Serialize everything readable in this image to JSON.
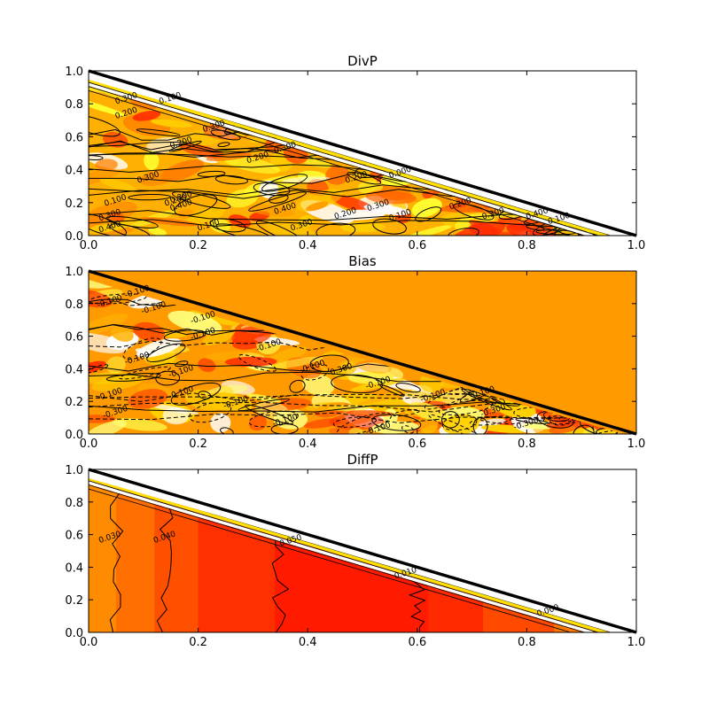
{
  "chart_data": [
    {
      "type": "contour",
      "title": "DivP",
      "xlim": [
        0.0,
        1.0
      ],
      "ylim": [
        0.0,
        1.0
      ],
      "xticks": [
        "0.0",
        "0.2",
        "0.4",
        "0.6",
        "0.8",
        "1.0"
      ],
      "yticks": [
        "0.0",
        "0.2",
        "0.4",
        "0.6",
        "0.8",
        "1.0"
      ],
      "boundary_line": [
        [
          0.0,
          1.0
        ],
        [
          1.0,
          0.0
        ]
      ],
      "background": "#ffffff",
      "contour_labels": [
        {
          "text": "0.300",
          "x": 0.07,
          "y": 0.82
        },
        {
          "text": "0.200",
          "x": 0.07,
          "y": 0.73
        },
        {
          "text": "0.100",
          "x": 0.15,
          "y": 0.82
        },
        {
          "text": "0.300",
          "x": 0.23,
          "y": 0.65
        },
        {
          "text": "0.200",
          "x": 0.17,
          "y": 0.55
        },
        {
          "text": "0.200",
          "x": 0.31,
          "y": 0.46
        },
        {
          "text": "0.300",
          "x": 0.36,
          "y": 0.52
        },
        {
          "text": "0.300",
          "x": 0.11,
          "y": 0.34
        },
        {
          "text": "0.100",
          "x": 0.05,
          "y": 0.2
        },
        {
          "text": "0.200",
          "x": 0.16,
          "y": 0.2
        },
        {
          "text": "0.400",
          "x": 0.17,
          "y": 0.17
        },
        {
          "text": "0.300",
          "x": 0.17,
          "y": 0.22
        },
        {
          "text": "0.300",
          "x": 0.04,
          "y": 0.11
        },
        {
          "text": "0.400",
          "x": 0.04,
          "y": 0.04
        },
        {
          "text": "0.100",
          "x": 0.22,
          "y": 0.05
        },
        {
          "text": "0.400",
          "x": 0.36,
          "y": 0.15
        },
        {
          "text": "0.300",
          "x": 0.39,
          "y": 0.05
        },
        {
          "text": "0.200",
          "x": 0.47,
          "y": 0.12
        },
        {
          "text": "0.200",
          "x": 0.49,
          "y": 0.34
        },
        {
          "text": "0.000",
          "x": 0.57,
          "y": 0.37
        },
        {
          "text": "0.300",
          "x": 0.53,
          "y": 0.17
        },
        {
          "text": "0.100",
          "x": 0.57,
          "y": 0.11
        },
        {
          "text": "0.200",
          "x": 0.68,
          "y": 0.18
        },
        {
          "text": "0.300",
          "x": 0.74,
          "y": 0.12
        },
        {
          "text": "0.400",
          "x": 0.82,
          "y": 0.12
        },
        {
          "text": "0.100",
          "x": 0.86,
          "y": 0.09
        }
      ]
    },
    {
      "type": "contour",
      "title": "Bias",
      "xlim": [
        0.0,
        1.0
      ],
      "ylim": [
        0.0,
        1.0
      ],
      "xticks": [
        "0.0",
        "0.2",
        "0.4",
        "0.6",
        "0.8",
        "1.0"
      ],
      "yticks": [
        "0.0",
        "0.2",
        "0.4",
        "0.6",
        "0.8",
        "1.0"
      ],
      "boundary_line": [
        [
          0.0,
          1.0
        ],
        [
          1.0,
          0.0
        ]
      ],
      "background": "#ff9a00",
      "contour_labels": [
        {
          "text": "-0.100",
          "x": 0.09,
          "y": 0.86
        },
        {
          "text": "-0.100",
          "x": 0.04,
          "y": 0.8
        },
        {
          "text": "-0.100",
          "x": 0.12,
          "y": 0.76
        },
        {
          "text": "-0.100",
          "x": 0.21,
          "y": 0.7
        },
        {
          "text": "-0.100",
          "x": 0.21,
          "y": 0.6
        },
        {
          "text": "-0.100",
          "x": 0.09,
          "y": 0.45
        },
        {
          "text": "-0.100",
          "x": 0.17,
          "y": 0.37
        },
        {
          "text": "-0.100",
          "x": 0.33,
          "y": 0.53
        },
        {
          "text": "-0.100",
          "x": 0.41,
          "y": 0.4
        },
        {
          "text": "-0.300",
          "x": 0.46,
          "y": 0.38
        },
        {
          "text": "-0.100",
          "x": 0.04,
          "y": 0.23
        },
        {
          "text": "-0.300",
          "x": 0.05,
          "y": 0.12
        },
        {
          "text": "-0.100",
          "x": 0.17,
          "y": 0.24
        },
        {
          "text": "-0.100",
          "x": 0.27,
          "y": 0.18
        },
        {
          "text": "-0.100",
          "x": 0.36,
          "y": 0.07
        },
        {
          "text": "-0.100",
          "x": 0.53,
          "y": 0.3
        },
        {
          "text": "-0.100",
          "x": 0.63,
          "y": 0.22
        },
        {
          "text": "-0.100",
          "x": 0.72,
          "y": 0.24
        },
        {
          "text": "-0.300",
          "x": 0.74,
          "y": 0.13
        },
        {
          "text": "-0.300",
          "x": 0.8,
          "y": 0.05
        },
        {
          "text": "-0.100",
          "x": 0.53,
          "y": 0.02
        }
      ]
    },
    {
      "type": "contour",
      "title": "DiffP",
      "xlim": [
        0.0,
        1.0
      ],
      "ylim": [
        0.0,
        1.0
      ],
      "xticks": [
        "0.0",
        "0.2",
        "0.4",
        "0.6",
        "0.8",
        "1.0"
      ],
      "yticks": [
        "0.0",
        "0.2",
        "0.4",
        "0.6",
        "0.8",
        "1.0"
      ],
      "boundary_line": [
        [
          0.0,
          1.0
        ],
        [
          1.0,
          0.0
        ]
      ],
      "background": "#ffffff",
      "contour_labels": [
        {
          "text": "0.030",
          "x": 0.04,
          "y": 0.57
        },
        {
          "text": "0.040",
          "x": 0.14,
          "y": 0.57
        },
        {
          "text": "0.050",
          "x": 0.37,
          "y": 0.55
        },
        {
          "text": "0.010",
          "x": 0.58,
          "y": 0.35
        },
        {
          "text": "0.000",
          "x": 0.84,
          "y": 0.12
        }
      ]
    }
  ]
}
